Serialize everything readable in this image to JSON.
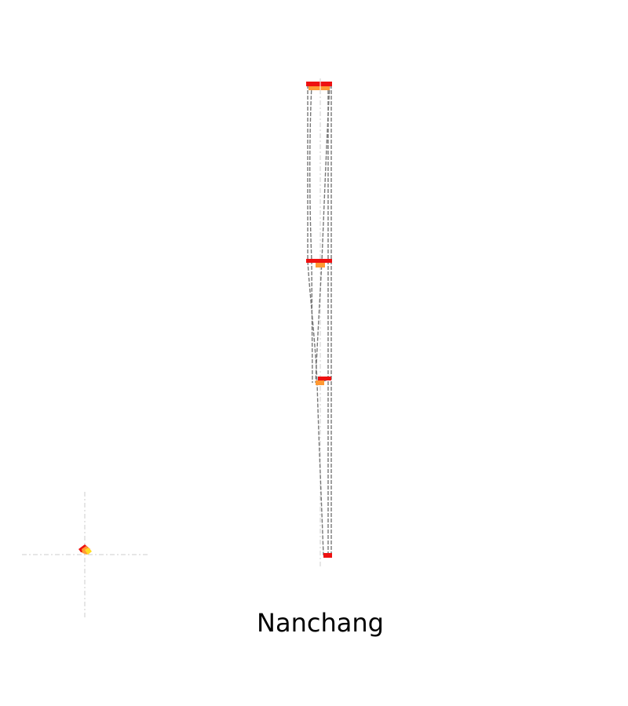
{
  "title": "Nanchang",
  "colors": {
    "background": "#ffffff",
    "outline": "#777777",
    "axis": "#cccccc",
    "marker_red": "#ee1111",
    "marker_orange": "#ff9933",
    "marker_yellow": "#ffdd22",
    "label": "#000000"
  }
}
